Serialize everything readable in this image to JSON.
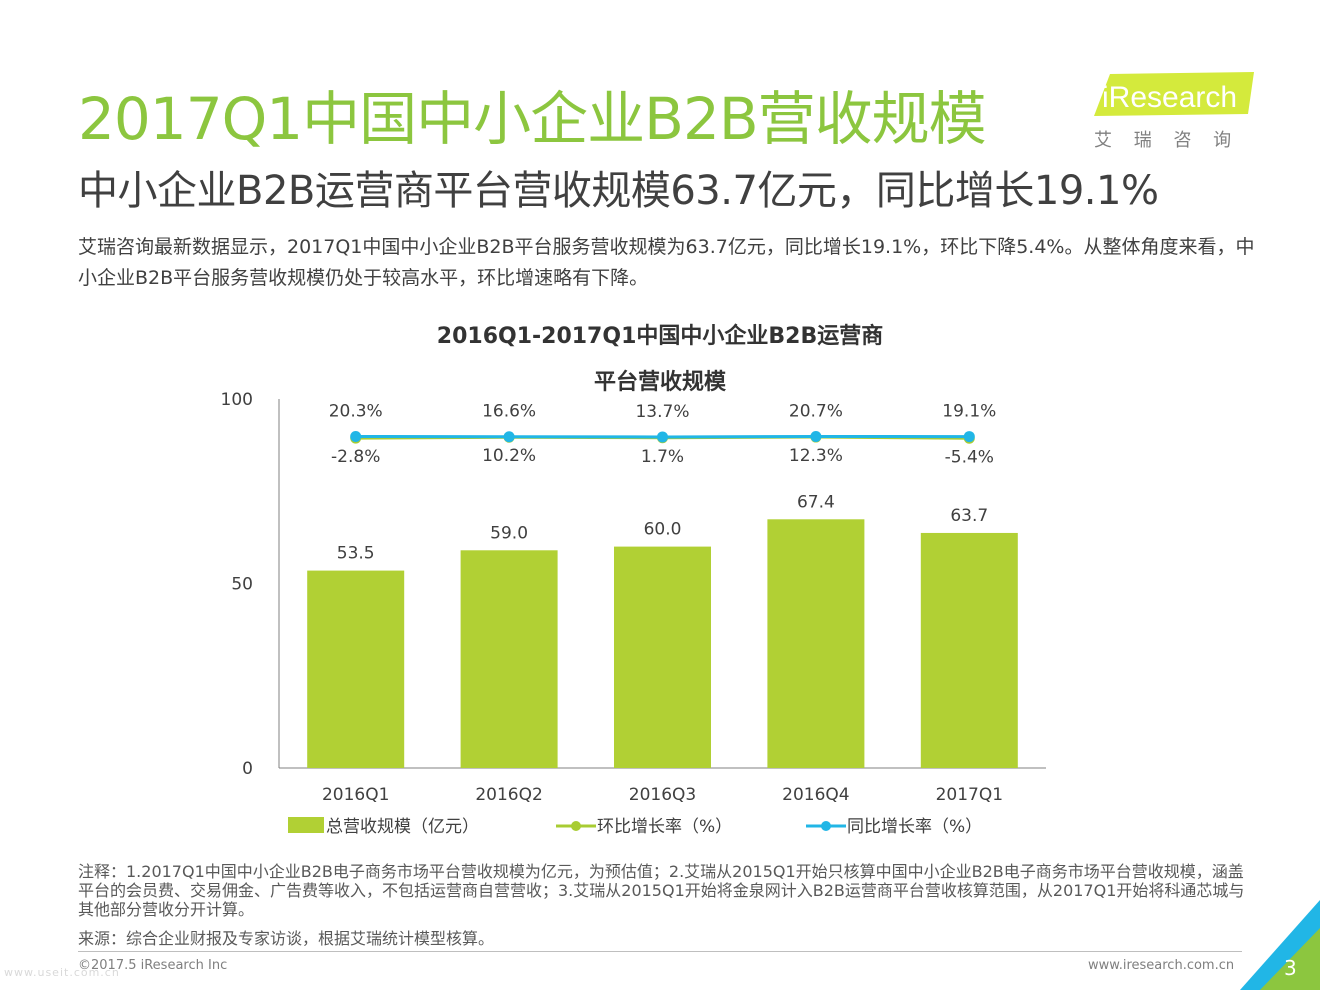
{
  "header": {
    "title": "2017Q1中国中小企业B2B营收规模",
    "subtitle": "中小企业B2B运营商平台营收规模63.7亿元，同比增长19.1%",
    "summary": "艾瑞咨询最新数据显示，2017Q1中国中小企业B2B平台服务营收规模为63.7亿元，同比增长19.1%，环比下降5.4%。从整体角度来看，中小企业B2B平台服务营收规模仍处于较高水平，环比增速略有下降。"
  },
  "logo": {
    "brand": "iResearch",
    "tagline": "艾 瑞 咨 询"
  },
  "chart_data": {
    "type": "bar",
    "title_line1": "2016Q1-2017Q1中国中小企业B2B运营商",
    "title_line2": "平台营收规模",
    "categories": [
      "2016Q1",
      "2016Q2",
      "2016Q3",
      "2016Q4",
      "2017Q1"
    ],
    "ylim": [
      0,
      100
    ],
    "yticks": [
      0,
      50,
      100
    ],
    "series": [
      {
        "name": "总营收规模（亿元）",
        "kind": "bar",
        "values": [
          53.5,
          59.0,
          60.0,
          67.4,
          63.7
        ],
        "labels": [
          "53.5",
          "59.0",
          "60.0",
          "67.4",
          "63.7"
        ]
      },
      {
        "name": "环比增长率（%）",
        "kind": "line",
        "values": [
          -2.8,
          10.2,
          1.7,
          12.3,
          -5.4
        ],
        "labels": [
          "-2.8%",
          "10.2%",
          "1.7%",
          "12.3%",
          "-5.4%"
        ]
      },
      {
        "name": "同比增长率（%）",
        "kind": "line",
        "values": [
          20.3,
          16.6,
          13.7,
          20.7,
          19.1
        ],
        "labels": [
          "20.3%",
          "16.6%",
          "13.7%",
          "20.7%",
          "19.1%"
        ]
      }
    ],
    "colors": {
      "bar": "#b1d034",
      "qoq": "#a8cc33",
      "yoy": "#21b6e6",
      "axis": "#808080"
    }
  },
  "notes": {
    "text": "注释：1.2017Q1中国中小企业B2B电子商务市场平台营收规模为亿元，为预估值；2.艾瑞从2015Q1开始只核算中国中小企业B2B电子商务市场平台营收规模，涵盖平台的会员费、交易佣金、广告费等收入，不包括运营商自营营收；3.艾瑞从2015Q1开始将金泉网计入B2B运营商平台营收核算范围，从2017Q1开始将科通芯城与其他部分营收分开计算。",
    "source": "来源：综合企业财报及专家访谈，根据艾瑞统计模型核算。"
  },
  "footer": {
    "copyright": "©2017.5 iResearch Inc",
    "website": "www.iresearch.com.cn",
    "page": "3",
    "watermark": "www.useit.com.cn"
  },
  "colors": {
    "title_green": "#8cc63f",
    "accent_blue": "#21b6e6"
  }
}
